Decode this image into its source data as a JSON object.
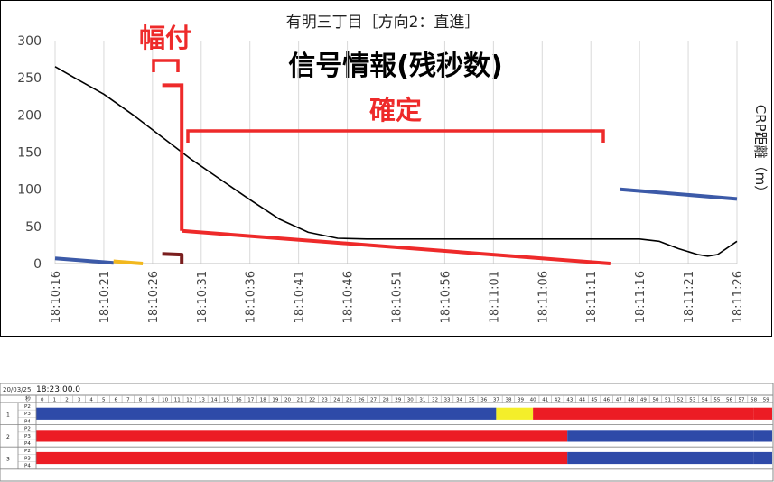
{
  "chart_data": {
    "type": "line",
    "title": "有明三丁目［方向2：直進］",
    "subtitle": "信号情報(残秒数)",
    "ylabel": "CRP距離（m）",
    "xlabel": "",
    "ylim": [
      0,
      300
    ],
    "yticks": [
      0,
      50,
      100,
      150,
      200,
      250,
      300
    ],
    "x_start": "18:10:16",
    "x_end": "18:11:26",
    "xticks": [
      "18:10:16",
      "18:10:21",
      "18:10:26",
      "18:10:31",
      "18:10:36",
      "18:10:41",
      "18:10:46",
      "18:10:51",
      "18:10:56",
      "18:11:01",
      "18:11:06",
      "18:11:11",
      "18:11:16",
      "18:11:21",
      "18:11:26"
    ],
    "grid": "vertical",
    "series": [
      {
        "color": "#000000",
        "style": "distance",
        "points": [
          [
            "18:10:16",
            265
          ],
          [
            "18:10:18",
            250
          ],
          [
            "18:10:21",
            228
          ],
          [
            "18:10:24",
            200
          ],
          [
            "18:10:27",
            170
          ],
          [
            "18:10:30",
            140
          ],
          [
            "18:10:33",
            113
          ],
          [
            "18:10:36",
            86
          ],
          [
            "18:10:39",
            60
          ],
          [
            "18:10:42",
            42
          ],
          [
            "18:10:45",
            34
          ],
          [
            "18:10:48",
            33
          ],
          [
            "18:11:00",
            33
          ],
          [
            "18:11:12",
            33
          ],
          [
            "18:11:16",
            33
          ],
          [
            "18:11:18",
            30
          ],
          [
            "18:11:20",
            20
          ],
          [
            "18:11:22",
            12
          ],
          [
            "18:11:23",
            10
          ],
          [
            "18:11:24",
            12
          ],
          [
            "18:11:26",
            30
          ]
        ]
      },
      {
        "color": "#3c5aa8",
        "style": "signal-blue",
        "points": [
          [
            "18:10:16",
            7
          ],
          [
            "18:10:22",
            1
          ]
        ]
      },
      {
        "color": "#f2b81e",
        "style": "signal-yellow",
        "points": [
          [
            "18:10:22",
            3
          ],
          [
            "18:10:25",
            0
          ]
        ]
      },
      {
        "color": "#7a1e1e",
        "style": "signal-red-dark",
        "points": [
          [
            "18:10:27",
            13
          ],
          [
            "18:10:29",
            12
          ],
          [
            "18:10:29",
            0
          ]
        ]
      },
      {
        "color": "#ee2a2a",
        "style": "signal-red",
        "points": [
          [
            "18:10:29",
            44
          ],
          [
            "18:11:13",
            0
          ]
        ]
      },
      {
        "color": "#3c5aa8",
        "style": "signal-blue",
        "points": [
          [
            "18:11:14",
            100
          ],
          [
            "18:11:26",
            87
          ]
        ]
      }
    ],
    "annotations": {
      "haba": "幅付",
      "kakutei": "確定"
    }
  },
  "timeline": {
    "date": "20/03/25",
    "time": "18:23:00.0",
    "sec_header": "秒",
    "seconds": [
      "0",
      "1",
      "2",
      "3",
      "4",
      "5",
      "6",
      "7",
      "8",
      "9",
      "10",
      "11",
      "12",
      "13",
      "14",
      "15",
      "16",
      "17",
      "18",
      "19",
      "20",
      "21",
      "22",
      "23",
      "24",
      "25",
      "26",
      "27",
      "28",
      "29",
      "30",
      "31",
      "32",
      "33",
      "34",
      "35",
      "36",
      "37",
      "38",
      "39",
      "40",
      "41",
      "42",
      "43",
      "44",
      "45",
      "46",
      "47",
      "48",
      "49",
      "50",
      "51",
      "52",
      "53",
      "54",
      "55",
      "56",
      "57",
      "58",
      "59"
    ],
    "groups": [
      {
        "label": "1",
        "rows": [
          {
            "label": "P2",
            "segments": []
          },
          {
            "label": "P3",
            "segments": [
              {
                "from": 0,
                "to": 37.5,
                "color": "#2e4aa8"
              },
              {
                "from": 37.5,
                "to": 40.5,
                "color": "#f4ee2a"
              },
              {
                "from": 40.5,
                "to": 58.5,
                "color": "#ec1c24"
              },
              {
                "from": 58.5,
                "to": 60,
                "color": "#ec1c24"
              }
            ]
          },
          {
            "label": "P4",
            "segments": []
          }
        ]
      },
      {
        "label": "2",
        "rows": [
          {
            "label": "P2",
            "segments": []
          },
          {
            "label": "P3",
            "segments": [
              {
                "from": 0,
                "to": 43.3,
                "color": "#ec1c24"
              },
              {
                "from": 43.3,
                "to": 58.5,
                "color": "#2e4aa8"
              },
              {
                "from": 58.5,
                "to": 60,
                "color": "#2e4aa8"
              }
            ]
          },
          {
            "label": "P4",
            "segments": []
          }
        ]
      },
      {
        "label": "3",
        "rows": [
          {
            "label": "P2",
            "segments": []
          },
          {
            "label": "P3",
            "segments": [
              {
                "from": 0,
                "to": 43.3,
                "color": "#ec1c24"
              },
              {
                "from": 43.3,
                "to": 58.5,
                "color": "#2e4aa8"
              },
              {
                "from": 58.5,
                "to": 60,
                "color": "#2e4aa8"
              }
            ]
          },
          {
            "label": "P4",
            "segments": []
          }
        ]
      }
    ]
  }
}
